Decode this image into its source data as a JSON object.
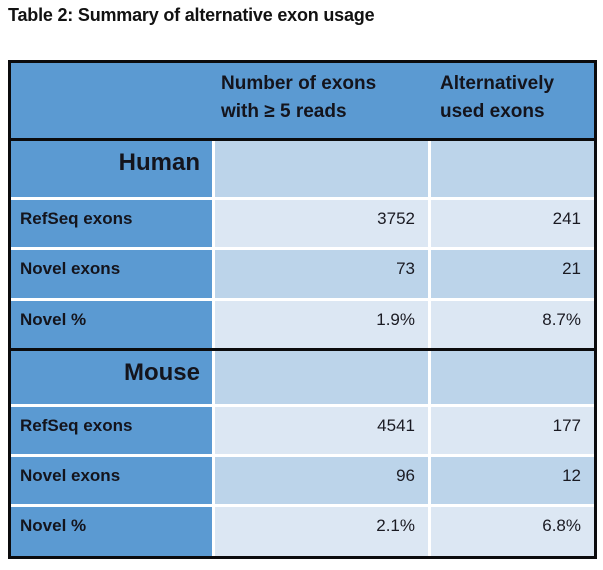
{
  "title": "Table 2: Summary of alternative exon usage",
  "table": {
    "header": {
      "col1": "",
      "col2_line1": "Number of exons",
      "col2_line2": "with ≥ 5 reads",
      "col3_line1": "Alternatively",
      "col3_line2": "used exons"
    },
    "sections": [
      {
        "name": "Human",
        "rows": [
          {
            "label": "RefSeq exons",
            "values": [
              "3752",
              "241"
            ]
          },
          {
            "label": "Novel exons",
            "values": [
              "73",
              "21"
            ]
          },
          {
            "label": "Novel %",
            "values": [
              "1.9%",
              "8.7%"
            ]
          }
        ]
      },
      {
        "name": "Mouse",
        "rows": [
          {
            "label": "RefSeq exons",
            "values": [
              "4541",
              "177"
            ]
          },
          {
            "label": "Novel exons",
            "values": [
              "96",
              "12"
            ]
          },
          {
            "label": "Novel %",
            "values": [
              "2.1%",
              "6.8%"
            ]
          }
        ]
      }
    ]
  },
  "colors": {
    "header_blue": "#5B9AD2",
    "row_light_blue": "#DCE7F3",
    "row_medium_blue": "#BCD4EA",
    "border_black": "#0b0b0d",
    "separator_white": "#ffffff",
    "text": "#14141c"
  }
}
